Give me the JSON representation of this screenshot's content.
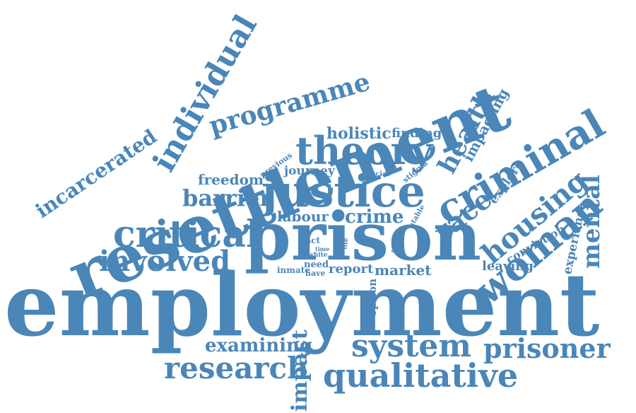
{
  "colors": {
    "word": "#4a86b8",
    "background": "#ffffff"
  },
  "words": [
    {
      "id": "employment",
      "text": "employment"
    },
    {
      "id": "resettlement",
      "text": "resettlement"
    },
    {
      "id": "prison",
      "text": "prison"
    },
    {
      "id": "justice",
      "text": "justice"
    },
    {
      "id": "criminal",
      "text": "criminal"
    },
    {
      "id": "woman",
      "text": "woman"
    },
    {
      "id": "housing",
      "text": "housing"
    },
    {
      "id": "theory",
      "text": "theory"
    },
    {
      "id": "individual",
      "text": "individual"
    },
    {
      "id": "critical",
      "text": "critical"
    },
    {
      "id": "system",
      "text": "system"
    },
    {
      "id": "qualitative",
      "text": "qualitative"
    },
    {
      "id": "research",
      "text": "research"
    },
    {
      "id": "prisoner",
      "text": "prisoner"
    },
    {
      "id": "involved",
      "text": "involved"
    },
    {
      "id": "programme",
      "text": "programme"
    },
    {
      "id": "race",
      "text": "race"
    },
    {
      "id": "health",
      "text": "health"
    },
    {
      "id": "mental",
      "text": "mental"
    },
    {
      "id": "incarcerated",
      "text": "incarcerated"
    },
    {
      "id": "barrier",
      "text": "barrier"
    },
    {
      "id": "impact",
      "text": "impact"
    },
    {
      "id": "examining",
      "text": "examining"
    },
    {
      "id": "crime",
      "text": "crime"
    },
    {
      "id": "labour",
      "text": "labour"
    },
    {
      "id": "holistic",
      "text": "holistic"
    },
    {
      "id": "freedom",
      "text": "freedom"
    },
    {
      "id": "journey",
      "text": "journey"
    },
    {
      "id": "finding",
      "text": "finding"
    },
    {
      "id": "impacting",
      "text": "impacting"
    },
    {
      "id": "explore",
      "text": "explore"
    },
    {
      "id": "experience",
      "text": "experience"
    },
    {
      "id": "conviction",
      "text": "conviction"
    },
    {
      "id": "leaving",
      "text": "leaving"
    },
    {
      "id": "report",
      "text": "report"
    },
    {
      "id": "market",
      "text": "market"
    },
    {
      "id": "inmate",
      "text": "inmate"
    },
    {
      "id": "need",
      "text": "need"
    },
    {
      "id": "have",
      "text": "have"
    },
    {
      "id": "pact",
      "text": "pact"
    },
    {
      "id": "time",
      "text": "time"
    },
    {
      "id": "white",
      "text": "white"
    },
    {
      "id": "life",
      "text": "life"
    },
    {
      "id": "study",
      "text": "study"
    },
    {
      "id": "option",
      "text": "option"
    },
    {
      "id": "stable",
      "text": "stable"
    },
    {
      "id": "social",
      "text": "social"
    },
    {
      "id": "stigma",
      "text": "stigma"
    },
    {
      "id": "previous",
      "text": "previous"
    }
  ]
}
